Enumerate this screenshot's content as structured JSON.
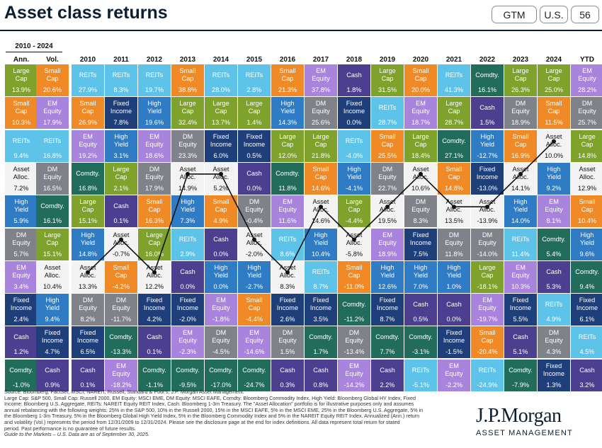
{
  "title": "Asset class returns",
  "tags": [
    "GTM",
    "U.S.",
    "56"
  ],
  "header": {
    "period": "2010 - 2024",
    "ann": "Ann.",
    "vol": "Vol.",
    "years": [
      "2010",
      "2011",
      "2012",
      "2013",
      "2014",
      "2015",
      "2016",
      "2017",
      "2018",
      "2019",
      "2020",
      "2021",
      "2022",
      "2023",
      "2024",
      "YTD"
    ]
  },
  "colors": {
    "Large Cap": "#7ea22c",
    "Small Cap": "#ef8a26",
    "EM Equity": "#a984dd",
    "REITs": "#5ec3e8",
    "Asset Alloc.": "#f3f3f3",
    "DM Equity": "#7f8289",
    "High Yield": "#2f7cc5",
    "Fixed Income": "#1f3f7a",
    "Cash": "#4c3f8f",
    "Comdty.": "#226c5c"
  },
  "chart_data": {
    "type": "table",
    "columns": [
      "Ann.",
      "Vol.",
      "2010",
      "2011",
      "2012",
      "2013",
      "2014",
      "2015",
      "2016",
      "2017",
      "2018",
      "2019",
      "2020",
      "2021",
      "2022",
      "2023",
      "2024",
      "YTD"
    ],
    "highlight_series": "Asset Alloc.",
    "rows": [
      [
        [
          "Large Cap",
          "13.9%"
        ],
        [
          "Small Cap",
          "20.6%"
        ],
        [
          "REITs",
          "27.9%"
        ],
        [
          "REITs",
          "8.3%"
        ],
        [
          "REITs",
          "19.7%"
        ],
        [
          "Small Cap",
          "38.8%"
        ],
        [
          "REITs",
          "28.0%"
        ],
        [
          "REITs",
          "2.8%"
        ],
        [
          "Small Cap",
          "21.3%"
        ],
        [
          "EM Equity",
          "37.8%"
        ],
        [
          "Cash",
          "1.8%"
        ],
        [
          "Large Cap",
          "31.5%"
        ],
        [
          "Small Cap",
          "20.0%"
        ],
        [
          "REITs",
          "41.3%"
        ],
        [
          "Comdty.",
          "16.1%"
        ],
        [
          "Large Cap",
          "26.3%"
        ],
        [
          "Large Cap",
          "25.0%"
        ],
        [
          "EM Equity",
          "28.2%"
        ]
      ],
      [
        [
          "Small Cap",
          "10.3%"
        ],
        [
          "EM Equity",
          "17.9%"
        ],
        [
          "Small Cap",
          "26.9%"
        ],
        [
          "Fixed Income",
          "7.8%"
        ],
        [
          "High Yield",
          "19.6%"
        ],
        [
          "Large Cap",
          "32.4%"
        ],
        [
          "Large Cap",
          "13.7%"
        ],
        [
          "Large Cap",
          "1.4%"
        ],
        [
          "High Yield",
          "14.3%"
        ],
        [
          "DM Equity",
          "25.6%"
        ],
        [
          "Fixed Income",
          "0.0%"
        ],
        [
          "REITs",
          "28.7%"
        ],
        [
          "EM Equity",
          "18.7%"
        ],
        [
          "Large Cap",
          "28.7%"
        ],
        [
          "Cash",
          "1.5%"
        ],
        [
          "DM Equity",
          "18.9%"
        ],
        [
          "Small Cap",
          "11.5%"
        ],
        [
          "DM Equity",
          "25.7%"
        ]
      ],
      [
        [
          "REITs",
          "9.4%"
        ],
        [
          "REITs",
          "16.8%"
        ],
        [
          "EM Equity",
          "19.2%"
        ],
        [
          "High Yield",
          "3.1%"
        ],
        [
          "EM Equity",
          "18.6%"
        ],
        [
          "DM Equity",
          "23.3%"
        ],
        [
          "Fixed Income",
          "6.0%"
        ],
        [
          "Fixed Income",
          "0.5%"
        ],
        [
          "Large Cap",
          "12.0%"
        ],
        [
          "Large Cap",
          "21.8%"
        ],
        [
          "REITs",
          "-4.0%"
        ],
        [
          "Small Cap",
          "25.5%"
        ],
        [
          "Large Cap",
          "18.4%"
        ],
        [
          "Comdty.",
          "27.1%"
        ],
        [
          "High Yield",
          "-12.7%"
        ],
        [
          "Small Cap",
          "16.9%"
        ],
        [
          "Asset Alloc.",
          "10.0%"
        ],
        [
          "Large Cap",
          "14.8%"
        ]
      ],
      [
        [
          "Asset Alloc.",
          "7.2%"
        ],
        [
          "DM Equity",
          "16.5%"
        ],
        [
          "Comdty.",
          "16.8%"
        ],
        [
          "Large Cap",
          "2.1%"
        ],
        [
          "DM Equity",
          "17.9%"
        ],
        [
          "Asset Alloc.",
          "14.9%"
        ],
        [
          "Asset Alloc.",
          "5.2%"
        ],
        [
          "Cash",
          "0.0%"
        ],
        [
          "Comdty.",
          "11.8%"
        ],
        [
          "Small Cap",
          "14.6%"
        ],
        [
          "High Yield",
          "-4.1%"
        ],
        [
          "DM Equity",
          "22.7%"
        ],
        [
          "Asset Alloc.",
          "10.6%"
        ],
        [
          "Small Cap",
          "14.8%"
        ],
        [
          "Fixed Income",
          "-13.0%"
        ],
        [
          "Asset Alloc.",
          "14.1%"
        ],
        [
          "High Yield",
          "9.2%"
        ],
        [
          "Asset Alloc.",
          "12.9%"
        ]
      ],
      [
        [
          "High Yield",
          "5.9%"
        ],
        [
          "Comdty.",
          "16.1%"
        ],
        [
          "Large Cap",
          "15.1%"
        ],
        [
          "Cash",
          "0.1%"
        ],
        [
          "Small Cap",
          "16.3%"
        ],
        [
          "High Yield",
          "7.3%"
        ],
        [
          "Small Cap",
          "4.9%"
        ],
        [
          "DM Equity",
          "-0.4%"
        ],
        [
          "EM Equity",
          "11.6%"
        ],
        [
          "Asset Alloc.",
          "14.6%"
        ],
        [
          "Large Cap",
          "-4.4%"
        ],
        [
          "Asset Alloc.",
          "19.5%"
        ],
        [
          "DM Equity",
          "8.3%"
        ],
        [
          "Asset Alloc.",
          "13.5%"
        ],
        [
          "Asset Alloc.",
          "-13.9%"
        ],
        [
          "High Yield",
          "14.0%"
        ],
        [
          "EM Equity",
          "8.1%"
        ],
        [
          "Small Cap",
          "10.4%"
        ]
      ],
      [
        [
          "DM Equity",
          "5.7%"
        ],
        [
          "Large Cap",
          "15.1%"
        ],
        [
          "High Yield",
          "14.8%"
        ],
        [
          "Asset Alloc.",
          "-0.7%"
        ],
        [
          "Large Cap",
          "16.0%"
        ],
        [
          "REITs",
          "2.9%"
        ],
        [
          "Cash",
          "0.0%"
        ],
        [
          "Asset Alloc.",
          "-2.0%"
        ],
        [
          "REITs",
          "8.6%"
        ],
        [
          "High Yield",
          "10.4%"
        ],
        [
          "Asset Alloc.",
          "-5.8%"
        ],
        [
          "EM Equity",
          "18.9%"
        ],
        [
          "Fixed Income",
          "7.5%"
        ],
        [
          "DM Equity",
          "11.8%"
        ],
        [
          "DM Equity",
          "-14.0%"
        ],
        [
          "REITs",
          "11.4%"
        ],
        [
          "Comdty.",
          "5.4%"
        ],
        [
          "High Yield",
          "9.6%"
        ]
      ],
      [
        [
          "EM Equity",
          "3.4%"
        ],
        [
          "Asset Alloc.",
          "10.4%"
        ],
        [
          "Asset Alloc.",
          "13.3%"
        ],
        [
          "Small Cap",
          "-4.2%"
        ],
        [
          "Asset Alloc.",
          "12.2%"
        ],
        [
          "Cash",
          "0.0%"
        ],
        [
          "High Yield",
          "0.0%"
        ],
        [
          "High Yield",
          "-2.7%"
        ],
        [
          "Asset Alloc.",
          "8.3%"
        ],
        [
          "REITs",
          "8.7%"
        ],
        [
          "Small Cap",
          "-11.0%"
        ],
        [
          "High Yield",
          "12.6%"
        ],
        [
          "High Yield",
          "7.0%"
        ],
        [
          "High Yield",
          "1.0%"
        ],
        [
          "Large Cap",
          "-18.1%"
        ],
        [
          "EM Equity",
          "10.3%"
        ],
        [
          "Cash",
          "5.3%"
        ],
        [
          "Comdty.",
          "9.4%"
        ]
      ],
      [
        [
          "Fixed Income",
          "2.4%"
        ],
        [
          "High Yield",
          "9.4%"
        ],
        [
          "DM Equity",
          "8.2%"
        ],
        [
          "DM Equity",
          "-11.7%"
        ],
        [
          "Fixed Income",
          "4.2%"
        ],
        [
          "Fixed Income",
          "-2.0%"
        ],
        [
          "EM Equity",
          "-1.8%"
        ],
        [
          "Small Cap",
          "-4.4%"
        ],
        [
          "Fixed Income",
          "2.6%"
        ],
        [
          "Fixed Income",
          "3.5%"
        ],
        [
          "Comdty.",
          "-11.2%"
        ],
        [
          "Fixed Income",
          "8.7%"
        ],
        [
          "Cash",
          "0.5%"
        ],
        [
          "Cash",
          "0.0%"
        ],
        [
          "EM Equity",
          "-19.7%"
        ],
        [
          "Fixed Income",
          "5.5%"
        ],
        [
          "REITs",
          "4.9%"
        ],
        [
          "Fixed Income",
          "6.1%"
        ]
      ],
      [
        [
          "Cash",
          "1.2%"
        ],
        [
          "Fixed Income",
          "4.7%"
        ],
        [
          "Fixed Income",
          "6.5%"
        ],
        [
          "Comdty.",
          "-13.3%"
        ],
        [
          "Cash",
          "0.1%"
        ],
        [
          "EM Equity",
          "-2.3%"
        ],
        [
          "DM Equity",
          "-4.5%"
        ],
        [
          "EM Equity",
          "-14.6%"
        ],
        [
          "DM Equity",
          "1.5%"
        ],
        [
          "Comdty.",
          "1.7%"
        ],
        [
          "DM Equity",
          "-13.4%"
        ],
        [
          "Comdty.",
          "7.7%"
        ],
        [
          "Comdty.",
          "-3.1%"
        ],
        [
          "Fixed Income",
          "-1.5%"
        ],
        [
          "Small Cap",
          "-20.4%"
        ],
        [
          "Cash",
          "5.1%"
        ],
        [
          "DM Equity",
          "4.3%"
        ],
        [
          "REITs",
          "4.5%"
        ]
      ],
      [
        [
          "Comdty.",
          "-1.0%"
        ],
        [
          "Cash",
          "0.9%"
        ],
        [
          "Cash",
          "0.1%"
        ],
        [
          "EM Equity",
          "-18.2%"
        ],
        [
          "Comdty.",
          "-1.1%"
        ],
        [
          "Comdty.",
          "-9.5%"
        ],
        [
          "Comdty.",
          "-17.0%"
        ],
        [
          "Comdty.",
          "-24.7%"
        ],
        [
          "Cash",
          "0.3%"
        ],
        [
          "Cash",
          "0.8%"
        ],
        [
          "EM Equity",
          "-14.2%"
        ],
        [
          "Cash",
          "2.2%"
        ],
        [
          "REITs",
          "-5.1%"
        ],
        [
          "EM Equity",
          "-2.2%"
        ],
        [
          "REITs",
          "-24.9%"
        ],
        [
          "Comdty.",
          "-7.9%"
        ],
        [
          "Fixed Income",
          "1.3%"
        ],
        [
          "Cash",
          "3.2%"
        ]
      ]
    ]
  },
  "footer": [
    "Source: Bloomberg, FactSet, MSCI, NAREIT, Russell, Standard & Poor's, J.P. Morgan Asset Management.",
    "Large Cap: S&P 500, Small Cap: Russell 2000, EM Equity: MSCI EME, DM Equity: MSCI EAFE, Comdty: Bloomberg Commodity Index, High Yield: Bloomberg Global HY Index, Fixed",
    "Income: Bloomberg U.S. Aggregate, REITs: NAREIT Equity REIT Index, Cash: Bloomberg 1-3m Treasury. The \"Asset Allocation\" portfolio is for illustrative purposes only and assumes",
    "annual rebalancing with the following weights: 25% in the S&P 500, 10% in the Russell 2000, 15% in the MSCI EAFE, 5% in the MSCI EME, 25% in the Bloomberg U.S. Aggregate, 5% in",
    "the Bloomberg 1-3m Treasury, 5% in the Bloomberg Global High Yield Index, 5% in the Bloomberg Commodity Index and 5% in the NAREIT Equity REIT Index. Annualized (Ann.) return",
    "and volatility (Vol.) represents the period from 12/31/2009 to 12/31/2024. Please see the disclosure page at the end for index definitions. All data represent total return for stated",
    "period. Past performance is no guarantee of future results.",
    "Guide to the Markets – U.S. Data are as of September 30, 2025."
  ],
  "logo": {
    "name": "J.P.Morgan",
    "sub": "ASSET MANAGEMENT"
  }
}
